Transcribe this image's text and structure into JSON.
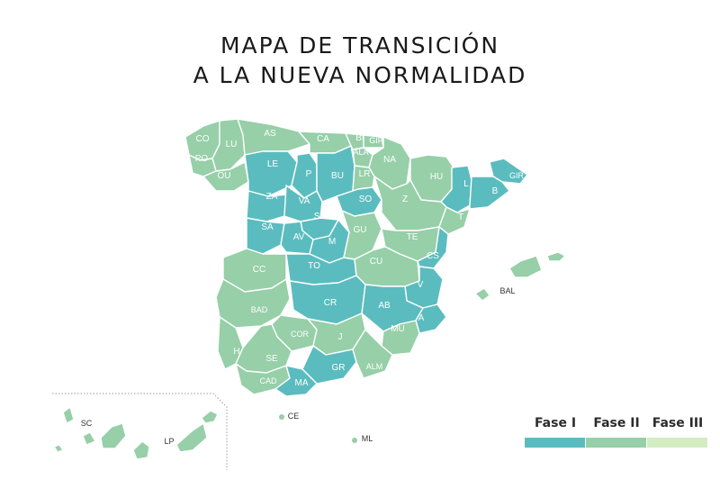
{
  "title": {
    "line1": "MAPA DE TRANSICIÓN",
    "line2": "A LA NUEVA NORMALIDAD"
  },
  "colors": {
    "fase1": "#5bbcbf",
    "fase2": "#96cfa8",
    "fase3": "#d3ecc1",
    "border": "#ffffff",
    "label": "#ffffff",
    "outside_label": "#333333",
    "inset_border": "#9a9a9a"
  },
  "legend": [
    {
      "label": "Fase I",
      "color": "#5bbcbf"
    },
    {
      "label": "Fase II",
      "color": "#96cfa8"
    },
    {
      "label": "Fase III",
      "color": "#d3ecc1"
    }
  ],
  "provinces": [
    {
      "code": "CO",
      "phase": 2
    },
    {
      "code": "LU",
      "phase": 2
    },
    {
      "code": "PO",
      "phase": 2
    },
    {
      "code": "OU",
      "phase": 2
    },
    {
      "code": "AS",
      "phase": 2
    },
    {
      "code": "CA",
      "phase": 2
    },
    {
      "code": "BI",
      "phase": 2
    },
    {
      "code": "GIP",
      "phase": 2
    },
    {
      "code": "ALA",
      "phase": 2
    },
    {
      "code": "NA",
      "phase": 2
    },
    {
      "code": "LE",
      "phase": 1
    },
    {
      "code": "P",
      "phase": 1
    },
    {
      "code": "BU",
      "phase": 1
    },
    {
      "code": "LR",
      "phase": 2
    },
    {
      "code": "HU",
      "phase": 2
    },
    {
      "code": "L",
      "phase": 1
    },
    {
      "code": "GIR",
      "phase": 1
    },
    {
      "code": "B",
      "phase": 1
    },
    {
      "code": "ZA",
      "phase": 1
    },
    {
      "code": "VA",
      "phase": 1
    },
    {
      "code": "SO",
      "phase": 1
    },
    {
      "code": "Z",
      "phase": 2
    },
    {
      "code": "T",
      "phase": 2
    },
    {
      "code": "SA",
      "phase": 1
    },
    {
      "code": "SG",
      "phase": 1
    },
    {
      "code": "AV",
      "phase": 1
    },
    {
      "code": "M",
      "phase": 1
    },
    {
      "code": "GU",
      "phase": 2
    },
    {
      "code": "TE",
      "phase": 2
    },
    {
      "code": "CS",
      "phase": 1
    },
    {
      "code": "CC",
      "phase": 2
    },
    {
      "code": "TO",
      "phase": 1
    },
    {
      "code": "CU",
      "phase": 2
    },
    {
      "code": "V",
      "phase": 1
    },
    {
      "code": "BAL",
      "phase": 2
    },
    {
      "code": "BAD",
      "phase": 2
    },
    {
      "code": "CR",
      "phase": 1
    },
    {
      "code": "AB",
      "phase": 1
    },
    {
      "code": "A",
      "phase": 1
    },
    {
      "code": "COR",
      "phase": 2
    },
    {
      "code": "J",
      "phase": 2
    },
    {
      "code": "MU",
      "phase": 2
    },
    {
      "code": "H",
      "phase": 2
    },
    {
      "code": "SE",
      "phase": 2
    },
    {
      "code": "GR",
      "phase": 1
    },
    {
      "code": "ALM",
      "phase": 2
    },
    {
      "code": "CAD",
      "phase": 2
    },
    {
      "code": "MA",
      "phase": 1
    },
    {
      "code": "CE",
      "phase": 2
    },
    {
      "code": "ML",
      "phase": 2
    },
    {
      "code": "SC",
      "phase": 2
    },
    {
      "code": "LP",
      "phase": 2
    }
  ]
}
